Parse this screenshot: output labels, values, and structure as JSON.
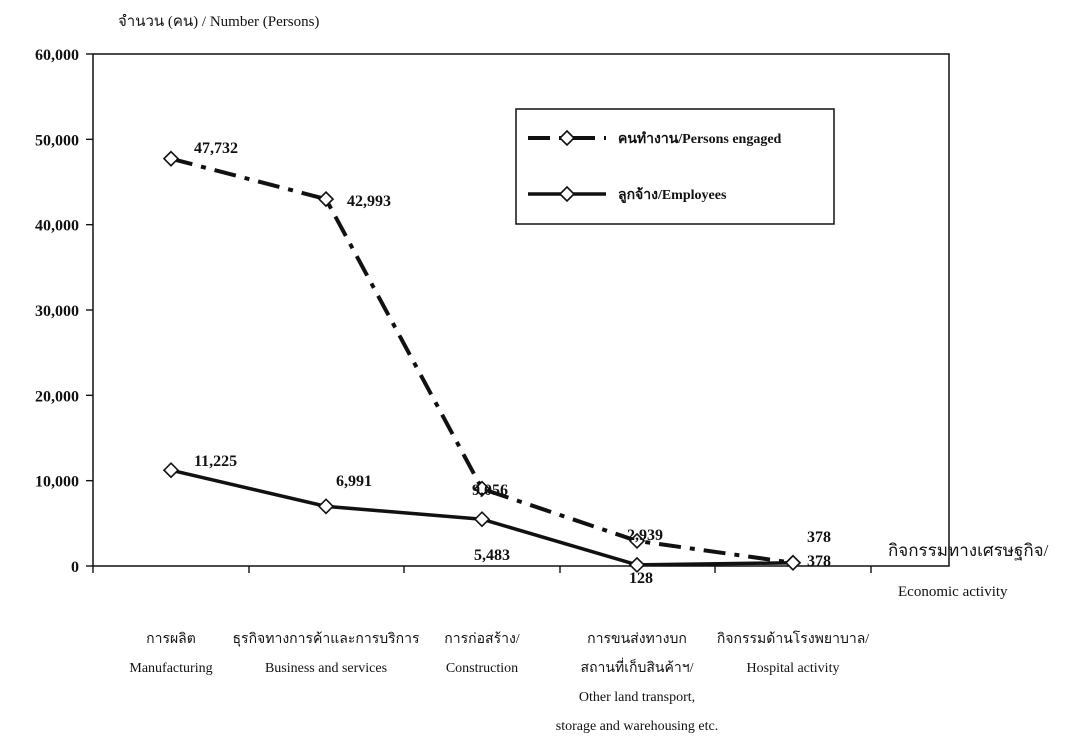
{
  "chart_data": {
    "type": "line",
    "ylabel": "จำนวน (คน) / Number (Persons)",
    "xlabel_lines": [
      "กิจกรรมทางเศรษฐกิจ/",
      "Economic activity"
    ],
    "ylim": [
      0,
      60000
    ],
    "yticks": [
      0,
      10000,
      20000,
      30000,
      40000,
      50000,
      60000
    ],
    "ytick_labels": [
      "0",
      "10,000",
      "20,000",
      "30,000",
      "40,000",
      "50,000",
      "60,000"
    ],
    "categories": [
      [
        "การผลิต",
        "Manufacturing"
      ],
      [
        "ธุรกิจทางการค้าและการบริการ",
        "Business and services"
      ],
      [
        "การก่อสร้าง/",
        "Construction"
      ],
      [
        "การขนส่งทางบก",
        "สถานที่เก็บสินค้าฯ/",
        "Other land transport,",
        "storage and warehousing etc."
      ],
      [
        "กิจกรรมด้านโรงพยาบาล/",
        "Hospital activity"
      ]
    ],
    "series": [
      {
        "name": "คนทำงาน/Persons engaged",
        "values": [
          47732,
          42993,
          9056,
          2939,
          378
        ],
        "labels": [
          "47,732",
          "42,993",
          "9,056",
          "2,939",
          "378"
        ],
        "style": "dash-dot",
        "marker": "open-diamond"
      },
      {
        "name": "ลูกจ้าง/Employees",
        "values": [
          11225,
          6991,
          5483,
          128,
          378
        ],
        "labels": [
          "11,225",
          "6,991",
          "5,483",
          "128",
          "378"
        ],
        "style": "solid",
        "marker": "open-diamond"
      }
    ],
    "legend_position": "top-right",
    "grid": false
  }
}
